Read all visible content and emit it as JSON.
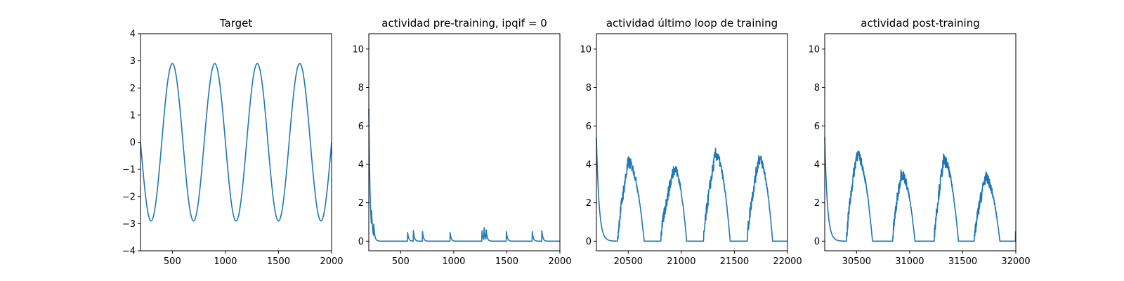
{
  "chart_data": [
    {
      "type": "line",
      "title": "Target",
      "xlim": [
        200,
        2000
      ],
      "ylim": [
        -4,
        4
      ],
      "xticks": [
        500,
        1000,
        1500,
        2000
      ],
      "yticks": [
        -4,
        -3,
        -2,
        -1,
        0,
        1,
        2,
        3,
        4
      ],
      "color": "#1f77b4",
      "signal": {
        "kind": "sine",
        "amplitude": 2.9,
        "period": 400,
        "peak_x": 500
      },
      "series": [
        {
          "x": [
            200,
            300,
            400,
            500,
            600,
            700,
            800,
            900,
            1000,
            1100,
            1200,
            1300,
            1400,
            1500,
            1600,
            1700,
            1800,
            1900,
            2000
          ],
          "y": [
            0.0,
            -2.9,
            0.0,
            2.9,
            0.0,
            -2.9,
            0.0,
            2.9,
            0.0,
            -2.9,
            0.0,
            2.9,
            0.0,
            -2.9,
            0.0,
            2.9,
            0.0,
            -2.9,
            -0.2
          ]
        }
      ]
    },
    {
      "type": "line",
      "title": "actividad pre-training, ipqif = 0",
      "xlim": [
        200,
        2000
      ],
      "ylim": [
        -0.5,
        10.8
      ],
      "xticks": [
        500,
        1000,
        1500,
        2000
      ],
      "yticks": [
        0,
        2,
        4,
        6,
        8,
        10
      ],
      "color": "#1f77b4",
      "signal": {
        "kind": "decay_spikes",
        "start_x": 200,
        "start_y": 6.9,
        "tau": 12,
        "spikes": [
          [
            225,
            0.9
          ],
          [
            245,
            0.7
          ],
          [
            565,
            0.5
          ],
          [
            620,
            0.55
          ],
          [
            705,
            0.55
          ],
          [
            965,
            0.5
          ],
          [
            1265,
            0.6
          ],
          [
            1285,
            0.7
          ],
          [
            1305,
            0.55
          ],
          [
            1495,
            0.55
          ],
          [
            1740,
            0.5
          ],
          [
            1830,
            0.55
          ]
        ]
      },
      "series": [
        {
          "x": [
            200,
            215,
            230,
            260,
            300,
            560,
            565,
            580,
            620,
            705,
            965,
            1265,
            1285,
            1305,
            1495,
            1740,
            1830,
            2000
          ],
          "y": [
            6.9,
            2.0,
            0.8,
            0.2,
            0.0,
            0.0,
            0.5,
            0.1,
            0.55,
            0.55,
            0.5,
            0.6,
            0.7,
            0.55,
            0.55,
            0.5,
            0.55,
            0.0
          ]
        }
      ]
    },
    {
      "type": "line",
      "title": "actividad último loop de training",
      "xlim": [
        20200,
        22000
      ],
      "ylim": [
        -0.5,
        10.8
      ],
      "xticks": [
        20500,
        21000,
        21500,
        22000
      ],
      "yticks": [
        0,
        2,
        4,
        6,
        8,
        10
      ],
      "color": "#1f77b4",
      "signal": {
        "kind": "decay_bumps",
        "start_x": 20200,
        "start_y": 5.4,
        "tau": 25,
        "bumps": [
          [
            20400,
            20500,
            20650,
            4.1
          ],
          [
            20805,
            20930,
            21050,
            3.8
          ],
          [
            21210,
            21320,
            21460,
            4.5
          ],
          [
            21620,
            21730,
            21860,
            4.3
          ]
        ]
      },
      "series": [
        {
          "x": [
            20200,
            20250,
            20300,
            20400,
            20500,
            20650,
            20805,
            20930,
            21050,
            21210,
            21320,
            21460,
            21620,
            21730,
            21860,
            22000
          ],
          "y": [
            5.4,
            1.0,
            0.1,
            0.0,
            4.1,
            0.0,
            0.0,
            3.8,
            0.0,
            0.0,
            4.5,
            0.0,
            0.0,
            4.3,
            0.0,
            0.0
          ]
        }
      ]
    },
    {
      "type": "line",
      "title": "actividad post-training",
      "xlim": [
        30200,
        32000
      ],
      "ylim": [
        -0.5,
        10.8
      ],
      "xticks": [
        30500,
        31000,
        31500,
        32000
      ],
      "yticks": [
        0,
        2,
        4,
        6,
        8,
        10
      ],
      "color": "#1f77b4",
      "signal": {
        "kind": "decay_bumps",
        "start_x": 30200,
        "start_y": 5.4,
        "tau": 25,
        "bumps": [
          [
            30405,
            30500,
            30650,
            4.5
          ],
          [
            30840,
            30920,
            31050,
            3.5
          ],
          [
            31230,
            31320,
            31460,
            4.2
          ],
          [
            31610,
            31710,
            31850,
            3.3
          ]
        ],
        "end_jump": [
          31998,
          0.5
        ]
      },
      "series": [
        {
          "x": [
            30200,
            30250,
            30300,
            30405,
            30500,
            30650,
            30840,
            30920,
            31050,
            31230,
            31320,
            31460,
            31610,
            31710,
            31850,
            32000
          ],
          "y": [
            5.4,
            1.0,
            0.1,
            0.0,
            4.5,
            0.0,
            0.0,
            3.5,
            0.0,
            0.0,
            4.2,
            0.0,
            0.0,
            3.3,
            0.0,
            0.5
          ]
        }
      ]
    }
  ]
}
